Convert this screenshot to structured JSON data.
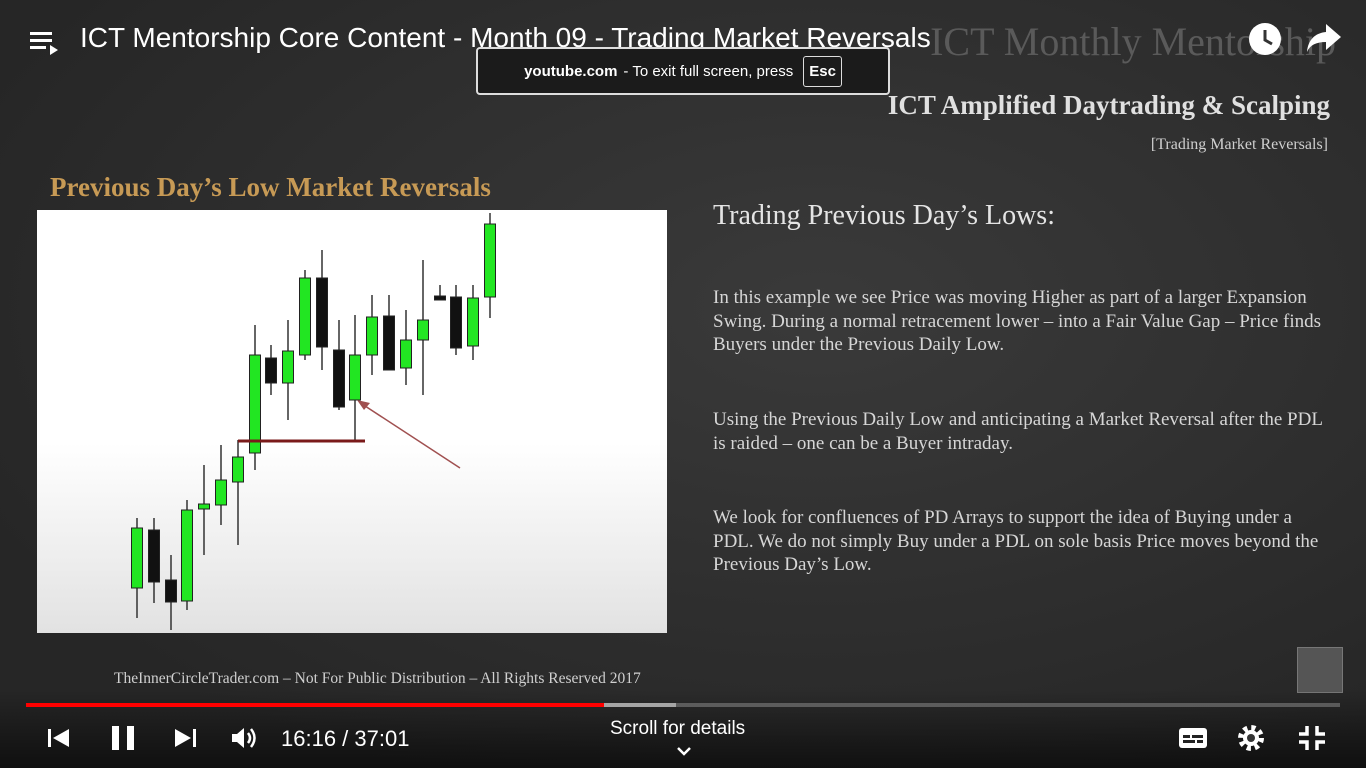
{
  "player": {
    "title": "ICT Mentorship Core Content - Month 09 - Trading Market Reversals",
    "toast": {
      "site": "youtube.com",
      "message": "- To exit full screen, press",
      "key": "Esc"
    },
    "time": "16:16 / 37:01",
    "scroll_hint": "Scroll for details"
  },
  "slide": {
    "header": "ICT Monthly Mentorship",
    "subheader": "ICT Amplified Daytrading & Scalping",
    "tag": "[Trading Market Reversals]",
    "chart_title": "Previous Day’s Low Market Reversals",
    "heading": "Trading Previous Day’s Lows:",
    "paragraphs": [
      "In this example we see Price was moving Higher as part of a larger Expansion Swing.  During a normal retracement lower – into a Fair Value Gap – Price finds Buyers under the Previous Daily Low.",
      "Using the Previous Daily Low and anticipating a Market Reversal after the PDL is raided – one can be a Buyer intraday.",
      "We look for confluences of PD Arrays to support the idea of Buying under a PDL.  We do not simply Buy under a PDL on sole basis Price moves beyond the Previous Day’s Low."
    ],
    "footer": "TheInnerCircleTrader.com – Not For Public Distribution – All Rights Reserved 2017"
  }
}
